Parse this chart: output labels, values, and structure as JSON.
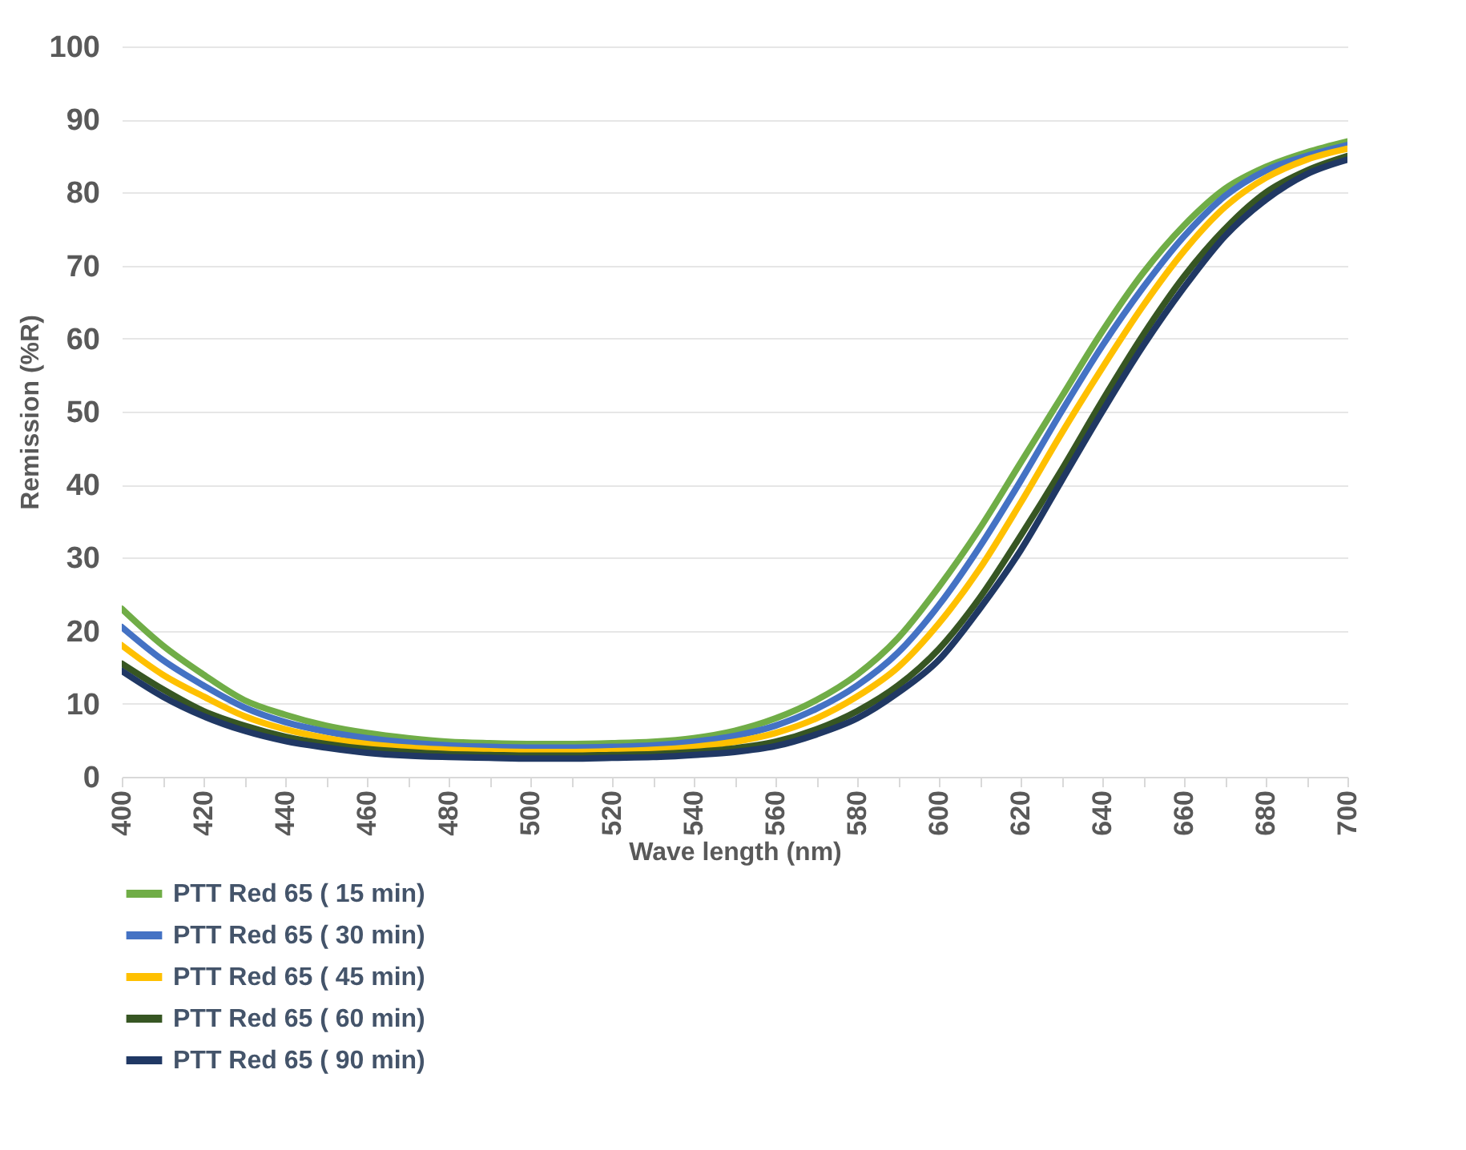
{
  "chart_data": {
    "type": "line",
    "xlabel": "Wave length (nm)",
    "ylabel": "Remission (%R)",
    "x": [
      400,
      410,
      420,
      430,
      440,
      450,
      460,
      470,
      480,
      490,
      500,
      510,
      520,
      530,
      540,
      550,
      560,
      570,
      580,
      590,
      600,
      610,
      620,
      630,
      640,
      650,
      660,
      670,
      680,
      690,
      700
    ],
    "series": [
      {
        "name": "PTT Red 65 ( 15 min)",
        "color": "#70ad47",
        "values": [
          23,
          18,
          14,
          10.5,
          8.5,
          7,
          6,
          5.3,
          4.8,
          4.6,
          4.5,
          4.5,
          4.6,
          4.8,
          5.3,
          6.3,
          8,
          10.5,
          14,
          19,
          26,
          34,
          43,
          52,
          61,
          69,
          75.5,
          80.5,
          83.5,
          85.5,
          87
        ]
      },
      {
        "name": "PTT Red 65 ( 30 min)",
        "color": "#4472c4",
        "values": [
          20.5,
          16,
          12.5,
          9.5,
          7.5,
          6.2,
          5.3,
          4.7,
          4.3,
          4.1,
          4,
          4,
          4.1,
          4.3,
          4.8,
          5.6,
          7,
          9.3,
          12.5,
          17,
          23.5,
          31.5,
          40.5,
          50,
          59,
          67,
          74,
          79.5,
          83,
          85,
          86.5
        ]
      },
      {
        "name": "PTT Red 65 ( 45 min)",
        "color": "#ffc000",
        "values": [
          18,
          14,
          11,
          8.3,
          6.5,
          5.3,
          4.5,
          4,
          3.7,
          3.5,
          3.4,
          3.4,
          3.5,
          3.7,
          4.1,
          4.8,
          6,
          8,
          11,
          15,
          21,
          28.5,
          37.5,
          47,
          56,
          64.5,
          72,
          78,
          82,
          84.5,
          86
        ]
      },
      {
        "name": "PTT Red 65 ( 60 min)",
        "color": "#375623",
        "values": [
          15.5,
          12,
          9,
          7,
          5.5,
          4.5,
          3.8,
          3.4,
          3.1,
          3,
          2.9,
          2.9,
          3,
          3.1,
          3.4,
          3.9,
          4.8,
          6.5,
          9,
          12.5,
          17.5,
          24.5,
          33,
          42,
          51.5,
          60.5,
          68.5,
          75,
          80,
          83,
          85
        ]
      },
      {
        "name": "PTT Red 65 ( 90 min)",
        "color": "#203864",
        "values": [
          14.5,
          11,
          8.3,
          6.3,
          4.9,
          4,
          3.3,
          2.9,
          2.7,
          2.6,
          2.5,
          2.5,
          2.6,
          2.7,
          3,
          3.4,
          4.2,
          5.8,
          8,
          11.5,
          16,
          23,
          31,
          40.5,
          50,
          59,
          67,
          74,
          79,
          82.5,
          84.5
        ]
      }
    ],
    "xlim": [
      400,
      700
    ],
    "xticks": [
      400,
      {
        "value": 410,
        "label": null
      },
      420,
      {
        "value": 430,
        "label": null
      },
      440,
      {
        "value": 450,
        "label": null
      },
      460,
      {
        "value": 470,
        "label": null
      },
      480,
      {
        "value": 490,
        "label": null
      },
      500,
      {
        "value": 510,
        "label": null
      },
      520,
      {
        "value": 530,
        "label": null
      },
      540,
      {
        "value": 550,
        "label": null
      },
      560,
      {
        "value": 570,
        "label": null
      },
      580,
      {
        "value": 590,
        "label": null
      },
      600,
      {
        "value": 610,
        "label": null
      },
      620,
      {
        "value": 630,
        "label": null
      },
      640,
      {
        "value": 650,
        "label": null
      },
      660,
      {
        "value": 670,
        "label": null
      },
      680,
      {
        "value": 690,
        "label": null
      },
      700
    ],
    "ylim": [
      0,
      100
    ],
    "yticks": [
      0,
      10,
      20,
      30,
      40,
      50,
      60,
      70,
      80,
      90,
      100
    ],
    "grid": "y",
    "legend": "bottom",
    "marker": "none",
    "line_style": "solid"
  }
}
